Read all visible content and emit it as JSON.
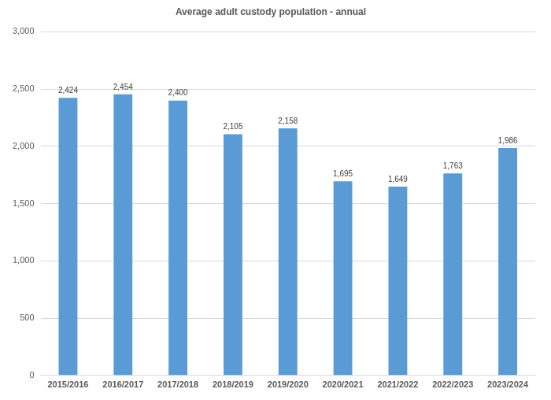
{
  "chart_data": {
    "type": "bar",
    "title": "Average adult custody population - annual",
    "categories": [
      "2015/2016",
      "2016/2017",
      "2017/2018",
      "2018/2019",
      "2019/2020",
      "2020/2021",
      "2021/2022",
      "2022/2023",
      "2023/2024"
    ],
    "values": [
      2424,
      2454,
      2400,
      2105,
      2158,
      1695,
      1649,
      1763,
      1986
    ],
    "value_labels": [
      "2,424",
      "2,454",
      "2,400",
      "2,105",
      "2,158",
      "1,695",
      "1,649",
      "1,763",
      "1,986"
    ],
    "color": "#5b9bd5",
    "ylim": [
      0,
      3000
    ],
    "yticks": [
      0,
      500,
      {
        "value": 1000,
        "label": "1,000"
      },
      {
        "value": 1500,
        "label": "1,500"
      },
      {
        "value": 2000,
        "label": "2,000"
      },
      {
        "value": 2500,
        "label": "2,500"
      },
      {
        "value": 3000,
        "label": "3,000"
      }
    ],
    "grid": true,
    "data_labels": true
  }
}
